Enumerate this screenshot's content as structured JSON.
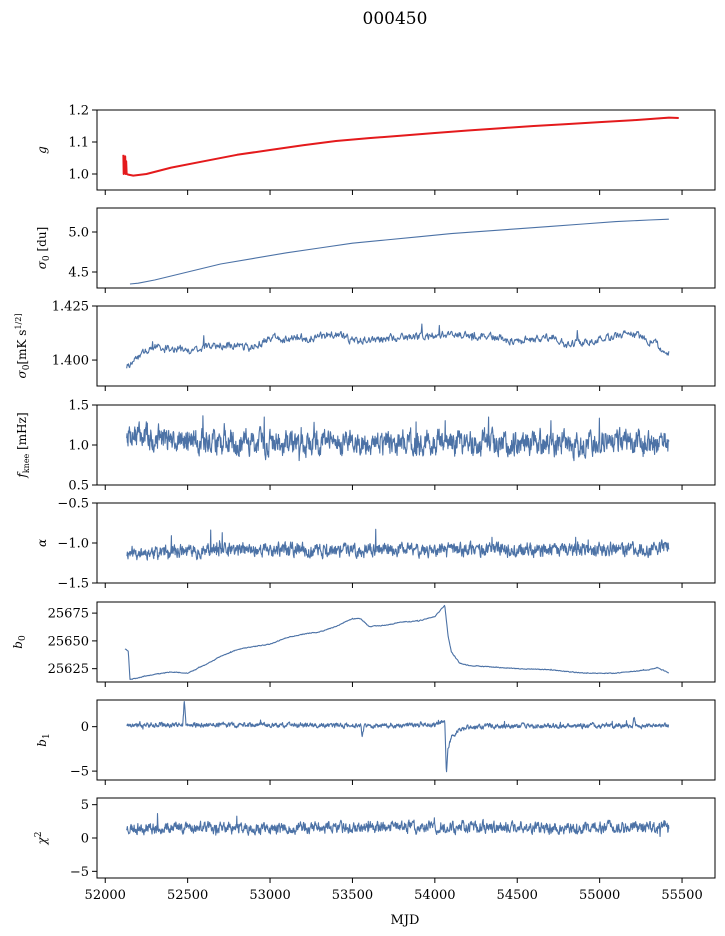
{
  "figure": {
    "title": "000450",
    "xlabel": "MJD"
  },
  "chart_data": {
    "type": "line",
    "title": "000450",
    "xlabel": "MJD",
    "xlim": [
      51950,
      55700
    ],
    "xticks": [
      52000,
      52500,
      53000,
      53500,
      54000,
      54500,
      55000,
      55500
    ],
    "xtick_labels": [
      "52000",
      "52500",
      "53000",
      "53500",
      "54000",
      "54500",
      "55000",
      "55500"
    ],
    "panels": [
      {
        "ylabel": "g",
        "ylim": [
          0.95,
          1.2
        ],
        "yticks": [
          1.0,
          1.1,
          1.2
        ],
        "ytick_labels": [
          "1.0",
          "1.1",
          "1.2"
        ],
        "series": [
          {
            "color": "#4c72a6",
            "x": [
              52110,
              52130,
              52170,
              52250,
              52400,
              52600,
              52800,
              53000,
              53200,
              53400,
              53600,
              53800,
              54000,
              54200,
              54400,
              54600,
              54800,
              55000,
              55200,
              55420
            ],
            "y": [
              1.01,
              1.0,
              0.995,
              1.0,
              1.02,
              1.04,
              1.06,
              1.075,
              1.09,
              1.103,
              1.112,
              1.12,
              1.128,
              1.136,
              1.143,
              1.15,
              1.156,
              1.162,
              1.168,
              1.175
            ]
          },
          {
            "color": "#e41a1c",
            "x": [
              52110,
              52112,
              52115,
              52118,
              52121,
              52124,
              52127,
              52130,
              52140,
              52170,
              52250,
              52400,
              52600,
              52800,
              53000,
              53200,
              53400,
              53600,
              53800,
              54000,
              54200,
              54400,
              54600,
              54800,
              55000,
              55200,
              55420,
              55480
            ],
            "y": [
              1.06,
              1.0,
              1.05,
              1.005,
              1.055,
              1.0,
              1.04,
              1.0,
              0.998,
              0.995,
              1.0,
              1.02,
              1.04,
              1.06,
              1.075,
              1.09,
              1.103,
              1.112,
              1.12,
              1.128,
              1.136,
              1.143,
              1.15,
              1.156,
              1.162,
              1.168,
              1.176,
              1.175
            ]
          }
        ]
      },
      {
        "ylabel": "σ0 [du]",
        "ylim": [
          4.3,
          5.3
        ],
        "yticks": [
          4.5,
          5.0
        ],
        "ytick_labels": [
          "4.5",
          "5.0"
        ],
        "series": [
          {
            "color": "#4c72a6",
            "x": [
              52150,
              52200,
              52300,
              52500,
              52700,
              52900,
              53100,
              53300,
              53500,
              53700,
              53900,
              54100,
              54300,
              54500,
              54700,
              54900,
              55100,
              55300,
              55420
            ],
            "y": [
              4.35,
              4.36,
              4.4,
              4.5,
              4.6,
              4.67,
              4.74,
              4.8,
              4.86,
              4.9,
              4.94,
              4.98,
              5.01,
              5.04,
              5.07,
              5.1,
              5.13,
              5.15,
              5.16
            ]
          }
        ]
      },
      {
        "ylabel": "σ0[mK s^1/2]",
        "ylim": [
          1.388,
          1.425
        ],
        "yticks": [
          1.4,
          1.425
        ],
        "ytick_labels": [
          "1.400",
          "1.425"
        ],
        "series": [
          {
            "color": "#4c72a6",
            "noise": {
              "seed": 3,
              "amp": 0.0022,
              "freq": 900
            },
            "x": [
              52130,
              52200,
              52300,
              52500,
              52700,
              52900,
              53000,
              53200,
              53400,
              53500,
              53700,
              53900,
              54100,
              54300,
              54500,
              54700,
              54800,
              55000,
              55200,
              55300,
              55420
            ],
            "y": [
              1.397,
              1.402,
              1.406,
              1.404,
              1.407,
              1.406,
              1.41,
              1.41,
              1.412,
              1.409,
              1.41,
              1.411,
              1.412,
              1.411,
              1.409,
              1.411,
              1.407,
              1.41,
              1.412,
              1.409,
              1.404
            ]
          }
        ]
      },
      {
        "ylabel": "fknee [mHz]",
        "ylim": [
          0.5,
          1.5
        ],
        "yticks": [
          0.5,
          1.0,
          1.5
        ],
        "ytick_labels": [
          "0.5",
          "1.0",
          "1.5"
        ],
        "series": [
          {
            "color": "#4c72a6",
            "noise": {
              "seed": 7,
              "amp": 0.17,
              "freq": 1600
            },
            "x": [
              52130,
              52300,
              52600,
              53000,
              53400,
              53800,
              54200,
              54600,
              55000,
              55420
            ],
            "y": [
              1.15,
              1.08,
              1.05,
              1.03,
              1.04,
              1.03,
              1.02,
              1.03,
              1.02,
              1.0
            ]
          }
        ]
      },
      {
        "ylabel": "α",
        "ylim": [
          -1.5,
          -0.5
        ],
        "yticks": [
          -1.5,
          -1.0,
          -0.5
        ],
        "ytick_labels": [
          "−1.5",
          "−1.0",
          "−0.5"
        ],
        "series": [
          {
            "color": "#4c72a6",
            "noise": {
              "seed": 11,
              "amp": 0.09,
              "freq": 1600
            },
            "x": [
              52130,
              52500,
              53000,
              53500,
              54000,
              54500,
              55000,
              55420
            ],
            "y": [
              -1.12,
              -1.1,
              -1.08,
              -1.09,
              -1.08,
              -1.09,
              -1.08,
              -1.07
            ]
          }
        ]
      },
      {
        "ylabel": "b0",
        "ylim": [
          25613,
          25685
        ],
        "yticks": [
          25625,
          25650,
          25675
        ],
        "ytick_labels": [
          "25625",
          "25650",
          "25675"
        ],
        "series": [
          {
            "color": "#4c72a6",
            "noise": {
              "seed": 5,
              "amp": 0.4,
              "freq": 1200
            },
            "x": [
              52120,
              52140,
              52150,
              52200,
              52300,
              52400,
              52500,
              52600,
              52700,
              52800,
              52900,
              53000,
              53100,
              53200,
              53300,
              53400,
              53500,
              53550,
              53600,
              53700,
              53800,
              53900,
              54000,
              54060,
              54080,
              54100,
              54150,
              54200,
              54300,
              54500,
              54700,
              54900,
              55100,
              55300,
              55350,
              55420
            ],
            "y": [
              25643,
              25641,
              25615,
              25617,
              25620,
              25622,
              25621,
              25628,
              25636,
              25642,
              25645,
              25647,
              25653,
              25656,
              25658,
              25663,
              25670,
              25670,
              25663,
              25664,
              25667,
              25668,
              25672,
              25682,
              25655,
              25640,
              25630,
              25628,
              25627,
              25625,
              25624,
              25621,
              25621,
              25624,
              25626,
              25621
            ]
          }
        ]
      },
      {
        "ylabel": "b1",
        "ylim": [
          -6,
          3
        ],
        "yticks": [
          -5,
          0
        ],
        "ytick_labels": [
          "−5",
          "0"
        ],
        "series": [
          {
            "color": "#4c72a6",
            "noise": {
              "seed": 17,
              "amp": 0.28,
              "freq": 1600
            },
            "x": [
              52130,
              52470,
              52480,
              52490,
              53000,
              53550,
              53560,
              53570,
              54000,
              54060,
              54070,
              54080,
              54100,
              54150,
              54200,
              54500,
              55000,
              55200,
              55210,
              55220,
              55420
            ],
            "y": [
              0.2,
              0.2,
              2.8,
              0.2,
              0.2,
              0.1,
              -1.0,
              0.1,
              0.2,
              0.5,
              -5.5,
              -2.5,
              -1.2,
              -0.4,
              0.0,
              0.1,
              0.1,
              0.1,
              1.2,
              0.1,
              0.1
            ]
          }
        ]
      },
      {
        "ylabel": "χ2",
        "ylim": [
          -6,
          6
        ],
        "yticks": [
          -5,
          0,
          5
        ],
        "ytick_labels": [
          "−5",
          "0",
          "5"
        ],
        "series": [
          {
            "color": "#4c72a6",
            "noise": {
              "seed": 23,
              "amp": 0.9,
              "freq": 1600
            },
            "x": [
              52130,
              52500,
              53000,
              53500,
              54000,
              54500,
              55000,
              55420
            ],
            "y": [
              1.5,
              1.6,
              1.4,
              1.6,
              1.7,
              1.5,
              1.6,
              1.6
            ]
          }
        ]
      }
    ]
  }
}
